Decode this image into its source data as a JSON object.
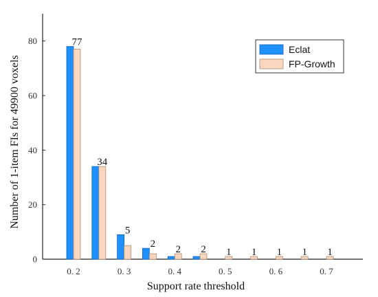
{
  "chart_data": {
    "type": "bar",
    "title": "",
    "xlabel": "Support rate threshold",
    "ylabel": "Number of 1-item FIs for 49900 voxels",
    "categories": [
      "0.2",
      "0.25",
      "0.3",
      "0.35",
      "0.4",
      "0.45",
      "0.5",
      "0.55",
      "0.6",
      "0.65",
      "0.7"
    ],
    "x_tick_labels": [
      "0. 2",
      "0. 3",
      "0. 4",
      "0. 5",
      "0. 6",
      "0. 7"
    ],
    "y_ticks": [
      0,
      20,
      40,
      60,
      80
    ],
    "ylim": [
      0,
      90
    ],
    "grid": false,
    "legend_position": "top-right",
    "series": [
      {
        "name": "Eclat",
        "color": "#1E90FF",
        "values": [
          78,
          34,
          9,
          4,
          1,
          1,
          0,
          0,
          0,
          0,
          0
        ]
      },
      {
        "name": "FP-Growth",
        "color": "#F9D7BF",
        "values": [
          77,
          34,
          5,
          2,
          2,
          2,
          1,
          1,
          1,
          1,
          1
        ]
      }
    ],
    "data_labels": [
      "77",
      "34",
      "5",
      "2",
      "2",
      "2",
      "1",
      "1",
      "1",
      "1",
      "1"
    ]
  }
}
